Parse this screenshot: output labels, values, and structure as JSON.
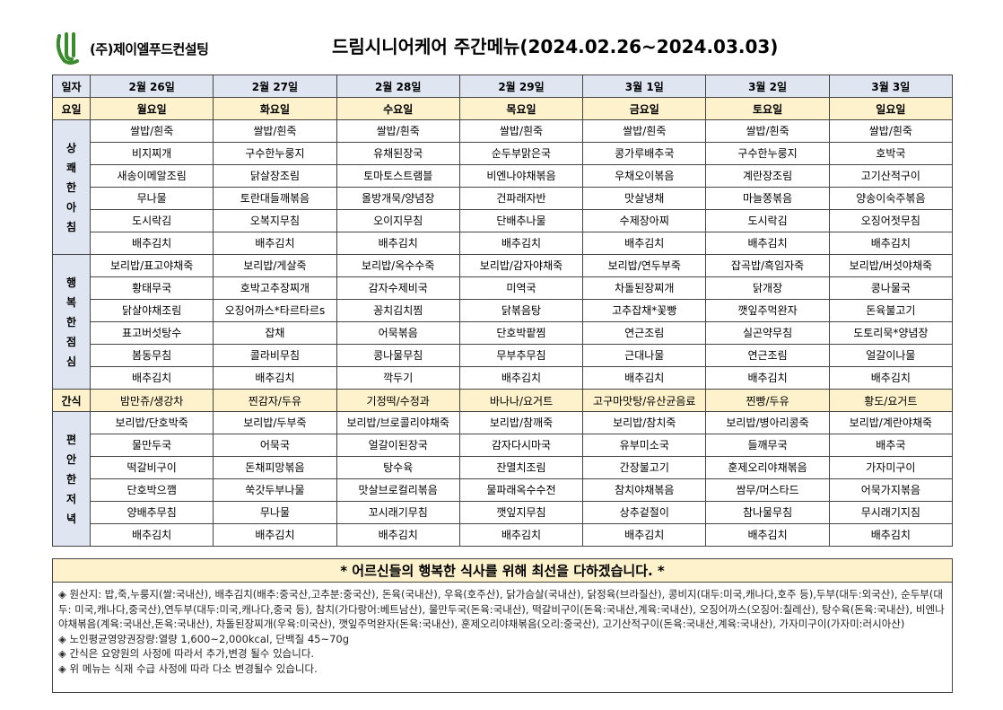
{
  "company": "(주)제이엘푸드컨설팅",
  "title": "드림시니어케어 주간메뉴(2024.02.26~2024.03.03)",
  "header": {
    "date_label": "일자",
    "day_label": "요일",
    "dates": [
      "2월 26일",
      "2월 27일",
      "2월 28일",
      "2월 29일",
      "3월 1일",
      "3월 2일",
      "3월 3일"
    ],
    "days": [
      "월요일",
      "화요일",
      "수요일",
      "목요일",
      "금요일",
      "토요일",
      "일요일"
    ]
  },
  "breakfast": {
    "label": [
      "상",
      "쾌",
      "한",
      "아",
      "침"
    ],
    "rows": [
      [
        "쌀밥/흰죽",
        "쌀밥/흰죽",
        "쌀밥/흰죽",
        "쌀밥/흰죽",
        "쌀밥/흰죽",
        "쌀밥/흰죽",
        "쌀밥/흰죽"
      ],
      [
        "비지찌개",
        "구수한누룽지",
        "유채된장국",
        "순두부맑은국",
        "콩가루배추국",
        "구수한누룽지",
        "호박국"
      ],
      [
        "새송이메알조림",
        "닭살장조림",
        "토마토스트램블",
        "비엔나야채볶음",
        "우채오이볶음",
        "계란장조림",
        "고기산적구이"
      ],
      [
        "무나물",
        "토란대들깨볶음",
        "올방개묵/양념장",
        "건파래자반",
        "맛살냉채",
        "마늘쫑볶음",
        "양송이숙주볶음"
      ],
      [
        "도시락김",
        "오복지무침",
        "오이지무침",
        "단배추나물",
        "수제장아찌",
        "도시락김",
        "오징어젓무침"
      ],
      [
        "배추김치",
        "배추김치",
        "배추김치",
        "배추김치",
        "배추김치",
        "배추김치",
        "배추김치"
      ]
    ]
  },
  "lunch": {
    "label": [
      "행",
      "복",
      "한",
      "점",
      "심"
    ],
    "rows": [
      [
        "보리밥/표고야채죽",
        "보리밥/게살죽",
        "보리밥/옥수수죽",
        "보리밥/감자야채죽",
        "보리밥/연두부죽",
        "잡곡밥/흑임자죽",
        "보리밥/버섯야채죽"
      ],
      [
        "황태무국",
        "호박고추장찌개",
        "감자수제비국",
        "미역국",
        "차돌된장찌개",
        "닭개장",
        "콩나물국"
      ],
      [
        "닭살야채조림",
        "오징어까스*타르타르s",
        "꽁치김치찜",
        "닭볶음탕",
        "고추잡채*꽃빵",
        "깻잎주먹완자",
        "돈육불고기"
      ],
      [
        "표고버섯탕수",
        "잡채",
        "어묵볶음",
        "단호박팥찜",
        "연근조림",
        "실곤약무침",
        "도토리묵*양념장"
      ],
      [
        "봄동무침",
        "콜라비무침",
        "콩나물무침",
        "무부추무침",
        "근대나물",
        "연근조림",
        "얼갈이나물"
      ],
      [
        "배추김치",
        "배추김치",
        "깍두기",
        "배추김치",
        "배추김치",
        "배추김치",
        "배추김치"
      ]
    ]
  },
  "snack": {
    "label": "간식",
    "items": [
      "밤만쥬/생강차",
      "찐감자/두유",
      "기정떡/수정과",
      "바나나/요거트",
      "고구마맛탕/유산균음료",
      "찐빵/두유",
      "황도/요거트"
    ]
  },
  "dinner": {
    "label": [
      "편",
      "안",
      "한",
      "저",
      "녁"
    ],
    "rows": [
      [
        "보리밥/단호박죽",
        "보리밥/두부죽",
        "보리밥/브로콜리야채죽",
        "보리밥/참깨죽",
        "보리밥/참치죽",
        "보리밥/병아리콩죽",
        "보리밥/계란야채죽"
      ],
      [
        "물만두국",
        "어묵국",
        "얼갈이된장국",
        "감자다시마국",
        "유부미소국",
        "들깨무국",
        "배추국"
      ],
      [
        "떡갈비구이",
        "돈채피망볶음",
        "탕수육",
        "잔멸치조림",
        "간장불고기",
        "훈제오리야채볶음",
        "가자미구이"
      ],
      [
        "단호박으깸",
        "쑥갓두부나물",
        "맛살브로컬리볶음",
        "물파래옥수수전",
        "참치야채볶음",
        "쌈무/머스타드",
        "어묵가지볶음"
      ],
      [
        "양배추무침",
        "무나물",
        "꼬시래기무침",
        "깻잎지무침",
        "상추겉절이",
        "참나물무침",
        "무시래기지짐"
      ],
      [
        "배추김치",
        "배추김치",
        "배추김치",
        "배추김치",
        "배추김치",
        "배추김치",
        "배추김치"
      ]
    ]
  },
  "notice": "* 어르신들의 행복한 식사를 위해 최선을 다하겠습니다. *",
  "notes": [
    "◈ 원산지: 밥,죽,누룽지(쌀:국내산), 배추김치(배추:중국산,고추분:중국산), 돈육(국내산), 우육(호주산), 닭가슴살(국내산), 닭정육(브라질산), 콩비지(대두:미국,캐나다,호주 등),두부(대두:외국산), 순두부(대두: 미국,캐나다,중국산),연두부(대두:미국,캐나다,중국 등), 참치(가다랑어:베트남산), 물만두국(돈육:국내산), 떡갈비구이(돈육:국내산,계육:국내산), 오징어까스(오징어:칠레산), 탕수육(돈육:국내산), 비엔나야채볶음(계육:국내산,돈육:국내산), 차돌된장찌개(우육:미국산), 깻잎주먹완자(돈육:국내산), 훈제오리야채볶음(오리:중국산), 고기산적구이(돈육:국내산,계육:국내산), 가자미구이(가자미:러시아산)",
    "◈ 노인평균영양권장량:열량 1,600~2,000kcal, 단백질 45~70g",
    "◈ 간식은 요양원의 사정에 따라서 추가,변경 될수 있습니다.",
    "◈ 위 메뉴는 식재 수급 사정에 따라 다소 변경될수 있습니다."
  ],
  "colors": {
    "header_blue": "#dfe6f2",
    "highlight_yellow": "#fdf2cc",
    "logo_green": "#3a8a2e"
  }
}
